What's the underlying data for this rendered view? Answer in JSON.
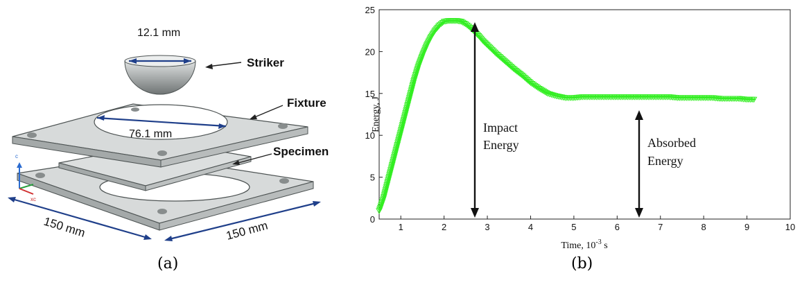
{
  "panel_a": {
    "caption": "(a)",
    "labels": {
      "striker_dim": "12.1 mm",
      "striker": "Striker",
      "fixture": "Fixture",
      "fixture_dim": "76.1 mm",
      "specimen": "Specimen",
      "width_left": "150 mm",
      "width_right": "150 mm"
    }
  },
  "panel_b": {
    "caption": "(b)",
    "annotations": {
      "impact_line1": "Impact",
      "impact_line2": "Energy",
      "absorbed_line1": "Absorbed",
      "absorbed_line2": "Energy"
    }
  },
  "chart_data": {
    "type": "line",
    "title": "",
    "xlabel": "Time, 10",
    "xlabel_exp": "-3",
    "xlabel_unit": " s",
    "ylabel": "Energy, J",
    "xlim": [
      0.5,
      10
    ],
    "ylim": [
      0,
      25
    ],
    "xticks": [
      1,
      2,
      3,
      4,
      5,
      6,
      7,
      8,
      9,
      10
    ],
    "yticks": [
      0,
      5,
      10,
      15,
      20,
      25
    ],
    "grid": false,
    "series_color": "#33ee22",
    "series": [
      {
        "marker": "triangle-down",
        "x": [
          0.5,
          0.6,
          0.7,
          0.8,
          0.9,
          1.0,
          1.1,
          1.2,
          1.3,
          1.4,
          1.5,
          1.6,
          1.7,
          1.8,
          1.9,
          2.0,
          2.1,
          2.2,
          2.3,
          2.4,
          2.5,
          2.6,
          2.7,
          2.8,
          2.9,
          3.0,
          3.2,
          3.4,
          3.6,
          3.8,
          4.0,
          4.2,
          4.4,
          4.6,
          4.8,
          5.0,
          5.2,
          5.4,
          5.6,
          5.8,
          6.0,
          6.2,
          6.4,
          6.6,
          6.8,
          7.0,
          7.2,
          7.4,
          7.6,
          7.8,
          8.0,
          8.2,
          8.4,
          8.6,
          8.8,
          9.0,
          9.2
        ],
        "y": [
          1.0,
          2.5,
          4.5,
          6.5,
          8.5,
          10.5,
          12.5,
          14.5,
          16.5,
          18.2,
          19.6,
          20.8,
          21.8,
          22.6,
          23.2,
          23.6,
          23.7,
          23.7,
          23.7,
          23.6,
          23.3,
          22.9,
          22.4,
          21.9,
          21.3,
          20.8,
          19.8,
          18.9,
          18.0,
          17.2,
          16.3,
          15.6,
          15.0,
          14.7,
          14.5,
          14.5,
          14.6,
          14.6,
          14.6,
          14.6,
          14.6,
          14.6,
          14.6,
          14.6,
          14.6,
          14.6,
          14.6,
          14.5,
          14.5,
          14.5,
          14.5,
          14.5,
          14.4,
          14.4,
          14.4,
          14.3,
          14.3
        ]
      }
    ]
  }
}
